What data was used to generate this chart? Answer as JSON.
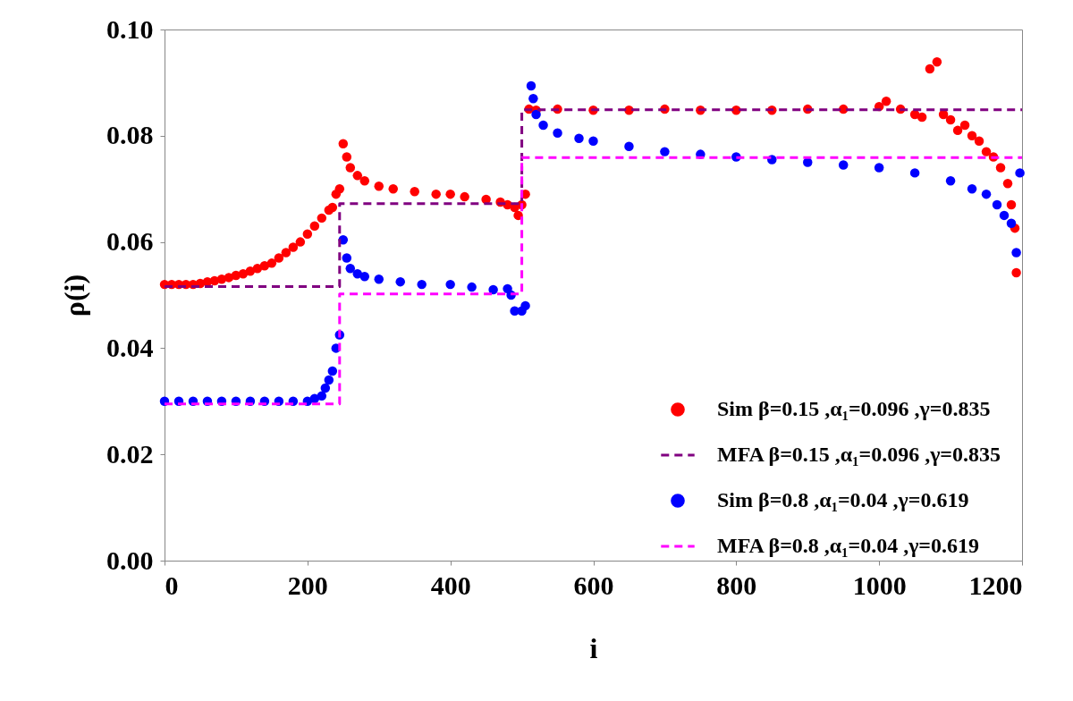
{
  "chart_data": {
    "type": "scatter",
    "xlabel": "i",
    "ylabel": "ρ(i)",
    "xlim": [
      0,
      1200
    ],
    "ylim": [
      0,
      0.1
    ],
    "xticks": [
      0,
      200,
      400,
      600,
      800,
      1000,
      1200
    ],
    "yticks": [
      {
        "value": 0,
        "label": "0.00"
      },
      {
        "value": 0.02,
        "label": "0.02"
      },
      {
        "value": 0.04,
        "label": "0.04"
      },
      {
        "value": 0.06,
        "label": "0.06"
      },
      {
        "value": 0.08,
        "label": "0.08"
      },
      {
        "value": 0.1,
        "label": "0.10"
      }
    ],
    "grid": false,
    "legend": "bottom right",
    "marker": "circle",
    "series": [
      {
        "name": "Sim   β=0.15 ,α₁=0.096 ,γ=0.835",
        "color": "#ff0000",
        "x": [
          0,
          10,
          20,
          30,
          40,
          50,
          60,
          70,
          80,
          90,
          100,
          110,
          120,
          130,
          140,
          150,
          160,
          170,
          180,
          190,
          200,
          210,
          220,
          230,
          235,
          240,
          245,
          250,
          255,
          260,
          270,
          280,
          300,
          320,
          350,
          380,
          400,
          420,
          450,
          470,
          480,
          490,
          495,
          500,
          505,
          510,
          520,
          550,
          600,
          650,
          700,
          750,
          800,
          850,
          900,
          950,
          1000,
          1010,
          1030,
          1050,
          1060,
          1071,
          1081,
          1090,
          1100,
          1110,
          1120,
          1130,
          1140,
          1150,
          1160,
          1170,
          1180,
          1185,
          1190,
          1192
        ],
        "values": [
          0.052,
          0.052,
          0.052,
          0.052,
          0.052,
          0.0522,
          0.0525,
          0.0527,
          0.053,
          0.0533,
          0.0537,
          0.054,
          0.0545,
          0.055,
          0.0555,
          0.056,
          0.057,
          0.058,
          0.059,
          0.06,
          0.0615,
          0.063,
          0.0645,
          0.066,
          0.0665,
          0.069,
          0.07,
          0.0785,
          0.076,
          0.074,
          0.0725,
          0.0715,
          0.0705,
          0.07,
          0.0695,
          0.069,
          0.069,
          0.0685,
          0.068,
          0.0675,
          0.067,
          0.0665,
          0.065,
          0.067,
          0.069,
          0.085,
          0.0848,
          0.085,
          0.0848,
          0.0848,
          0.085,
          0.0848,
          0.0848,
          0.0848,
          0.085,
          0.085,
          0.0855,
          0.0865,
          0.085,
          0.084,
          0.0835,
          0.0926,
          0.0939,
          0.084,
          0.083,
          0.081,
          0.082,
          0.08,
          0.079,
          0.077,
          0.076,
          0.074,
          0.071,
          0.067,
          0.0626,
          0.0542
        ]
      },
      {
        "name": "MFA    β=0.15 ,α₁=0.096 ,γ=0.835",
        "type": "step",
        "line_style": "dashed",
        "marker": "none",
        "color": "#800080",
        "x": [
          0,
          245,
          500,
          1200
        ],
        "values": [
          0.0516,
          0.0672,
          0.0849,
          0.0849
        ]
      },
      {
        "name": "Sim   β=0.8 ,α₁=0.04 ,γ=0.619",
        "color": "#0000ff",
        "x": [
          0,
          20,
          40,
          60,
          80,
          100,
          120,
          140,
          160,
          180,
          200,
          210,
          220,
          225,
          230,
          235,
          240,
          245,
          250,
          255,
          260,
          270,
          280,
          300,
          330,
          360,
          400,
          430,
          460,
          480,
          485,
          490,
          500,
          505,
          513,
          516,
          520,
          530,
          550,
          580,
          600,
          650,
          700,
          750,
          800,
          850,
          900,
          950,
          1000,
          1050,
          1100,
          1130,
          1150,
          1165,
          1175,
          1185,
          1192,
          1197
        ],
        "values": [
          0.03,
          0.03,
          0.03,
          0.03,
          0.03,
          0.03,
          0.03,
          0.03,
          0.03,
          0.03,
          0.03,
          0.0305,
          0.031,
          0.0325,
          0.034,
          0.0357,
          0.04,
          0.0425,
          0.0604,
          0.057,
          0.055,
          0.054,
          0.0535,
          0.053,
          0.0525,
          0.052,
          0.052,
          0.0515,
          0.051,
          0.0512,
          0.05,
          0.047,
          0.047,
          0.048,
          0.0894,
          0.087,
          0.084,
          0.082,
          0.0805,
          0.0795,
          0.079,
          0.078,
          0.077,
          0.0765,
          0.076,
          0.0755,
          0.075,
          0.0745,
          0.074,
          0.073,
          0.0715,
          0.07,
          0.069,
          0.067,
          0.065,
          0.0635,
          0.058,
          0.073
        ]
      },
      {
        "name": "MFA    β=0.8 ,α₁=0.04 ,γ=0.619",
        "type": "step",
        "line_style": "dashed",
        "marker": "none",
        "color": "#ff00ff",
        "x": [
          0,
          245,
          500,
          1200
        ],
        "values": [
          0.0295,
          0.0502,
          0.0759,
          0.0759
        ]
      }
    ]
  }
}
